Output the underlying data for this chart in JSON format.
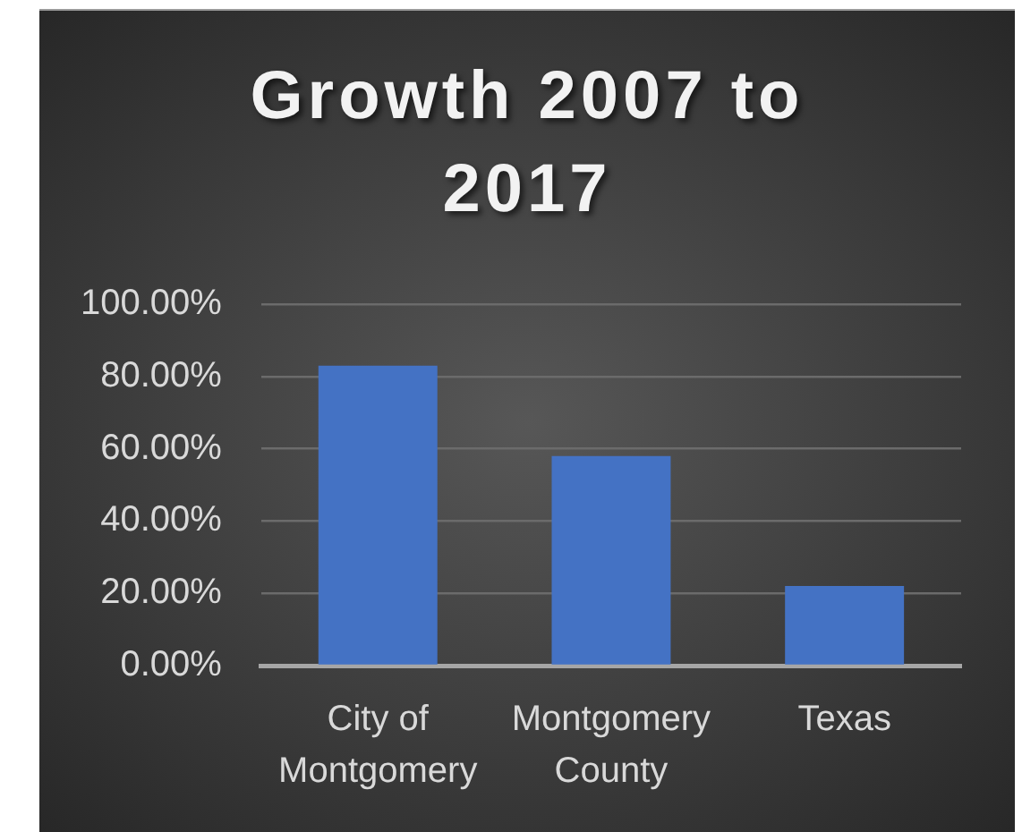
{
  "chart_data": {
    "type": "bar",
    "title": "Growth 2007 to 2017",
    "categories": [
      "City of Montgomery",
      "Montgomery County",
      "Texas"
    ],
    "values": [
      83,
      58,
      22
    ],
    "color": "#4472c4",
    "ylim": [
      0,
      100
    ],
    "yticks": [
      {
        "value": 0,
        "label": "0.00%"
      },
      {
        "value": 20,
        "label": "20.00%"
      },
      {
        "value": 40,
        "label": "40.00%"
      },
      {
        "value": 60,
        "label": "60.00%"
      },
      {
        "value": 80,
        "label": "80.00%"
      },
      {
        "value": 100,
        "label": "100.00%"
      }
    ],
    "grid": "y"
  }
}
